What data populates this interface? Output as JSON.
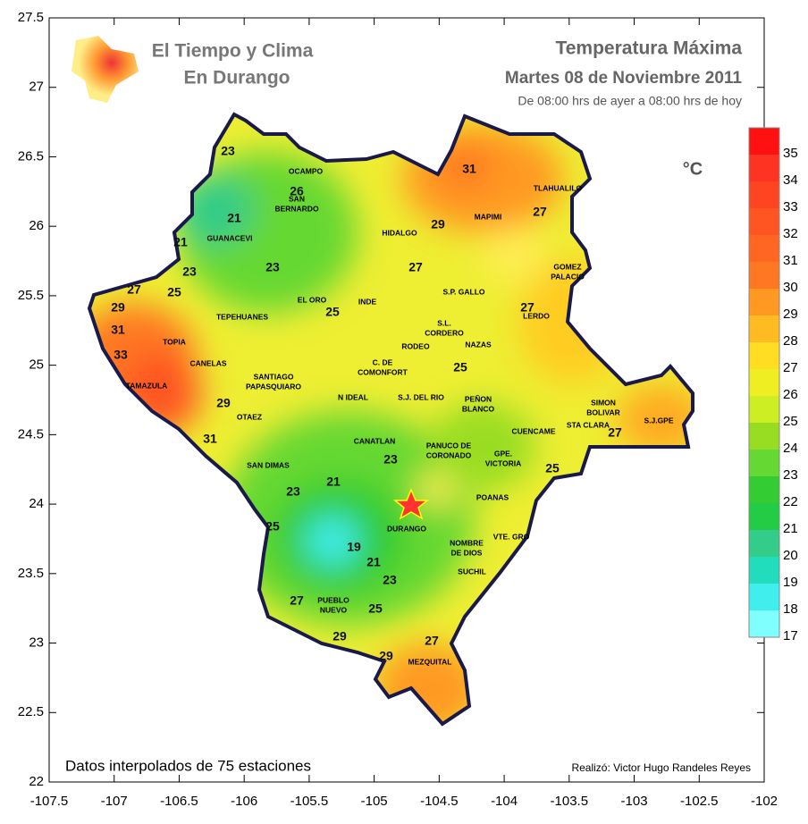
{
  "logo": {
    "line1": "El Tiempo y Clima",
    "line2": "En Durango"
  },
  "title": "Temperatura  Máxima",
  "date": "Martes 08 de Noviembre 2011",
  "period": "De 08:00 hrs de ayer a 08:00 hrs de hoy",
  "unit": "°C",
  "footer": "Datos interpolados de 75 estaciones",
  "credit": "Realizó: Victor Hugo Randeles Reyes",
  "map": {
    "xlim": [
      -107.5,
      -102
    ],
    "ylim": [
      22,
      27.5
    ],
    "xticks": [
      -107.5,
      -107,
      -106.5,
      -106,
      -105.5,
      -105,
      -104.5,
      -104,
      -103.5,
      -103,
      -102.5,
      -102
    ],
    "yticks": [
      22,
      22.5,
      23,
      23.5,
      24,
      24.5,
      25,
      25.5,
      26,
      26.5,
      27,
      27.5
    ]
  },
  "colorbar": {
    "ticks": [
      17,
      18,
      19,
      20,
      21,
      22,
      23,
      24,
      25,
      26,
      27,
      28,
      29,
      30,
      31,
      32,
      33,
      34,
      35
    ],
    "colors": [
      "#80ffff",
      "#40eeee",
      "#22ddbb",
      "#33cc88",
      "#22cc44",
      "#33cc33",
      "#66d833",
      "#99dd22",
      "#ccee22",
      "#eeee22",
      "#ffdd22",
      "#ffbb22",
      "#ff9922",
      "#ff7722",
      "#ff6622",
      "#ff5522",
      "#ff4422",
      "#ff3322",
      "#ff1111"
    ]
  },
  "places": [
    [
      "OCAMPO"
    ],
    [
      "SAN",
      "BERNARDO"
    ],
    [
      "HIDALGO"
    ],
    [
      "MAPIMI"
    ],
    [
      "TLAHUALILO"
    ],
    [
      "GUANACEVI"
    ],
    [
      "GOMEZ",
      "PALACIO"
    ],
    [
      "EL ORO"
    ],
    [
      "INDE"
    ],
    [
      "S.P. GALLO"
    ],
    [
      "S.L.",
      "CORDERO"
    ],
    [
      "LERDO"
    ],
    [
      "TEPEHUANES"
    ],
    [
      "TOPIA"
    ],
    [
      "RODEO"
    ],
    [
      "NAZAS"
    ],
    [
      "C. DE",
      "COMONFORT"
    ],
    [
      "CANELAS"
    ],
    [
      "SANTIAGO",
      "PAPASQUIARO"
    ],
    [
      "N IDEAL"
    ],
    [
      "S.J. DEL RIO"
    ],
    [
      "PEÑON",
      "BLANCO"
    ],
    [
      "SIMON",
      "BOLIVAR"
    ],
    [
      "STA CLARA"
    ],
    [
      "S.J.GPE"
    ],
    [
      "TAMAZULA"
    ],
    [
      "OTAEZ"
    ],
    [
      "CANATLAN"
    ],
    [
      "PANUCO DE",
      "CORONADO"
    ],
    [
      "GPE.",
      "VICTORIA"
    ],
    [
      "CUENCAME"
    ],
    [
      "SAN DIMAS"
    ],
    [
      "POANAS"
    ],
    [
      "DURANGO"
    ],
    [
      "NOMBRE",
      "DE DIOS"
    ],
    [
      "VTE. GRO"
    ],
    [
      "SUCHIL"
    ],
    [
      "PUEBLO",
      "NUEVO"
    ],
    [
      "MEZQUITAL"
    ]
  ],
  "contour_labels": [
    23,
    26,
    21,
    21,
    23,
    23,
    27,
    25,
    29,
    31,
    33,
    29,
    31,
    25,
    27,
    29,
    31,
    27,
    27,
    25,
    23,
    21,
    23,
    19,
    21,
    23,
    25,
    27,
    25,
    29,
    27,
    29,
    25,
    27
  ]
}
